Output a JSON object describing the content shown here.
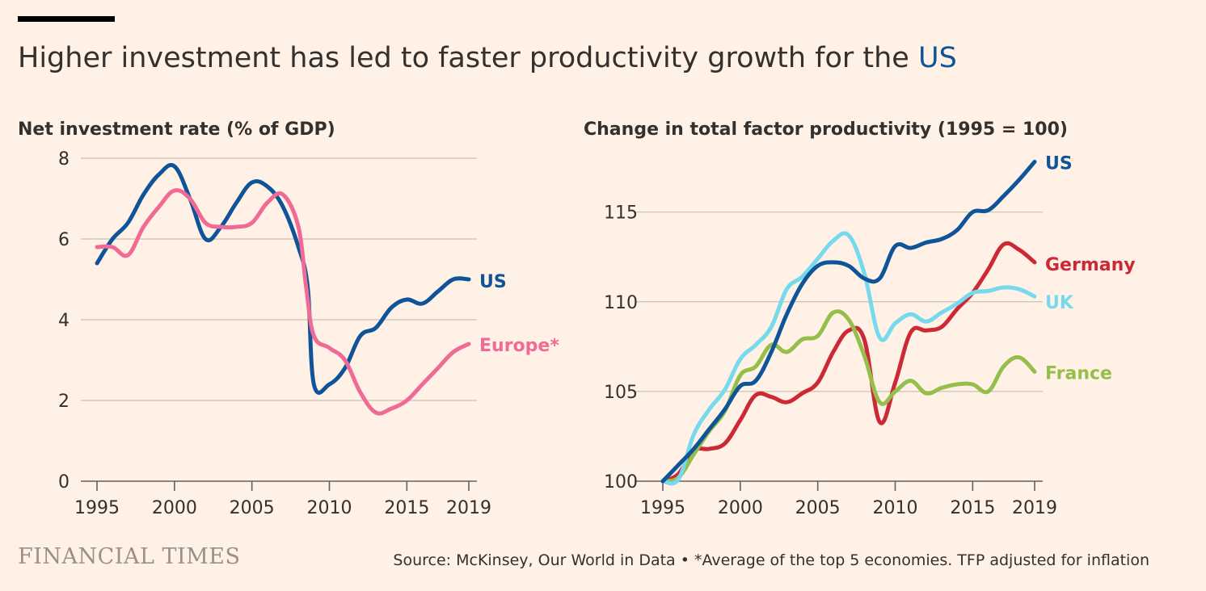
{
  "title": {
    "main": "Higher investment has led to faster productivity growth for the ",
    "highlight": "US"
  },
  "colors": {
    "background": "#FFF1E5",
    "grid": "#CCC1B7",
    "axis": "#66605C",
    "text": "#33302E",
    "us": "#0F5499",
    "europe": "#EF6B96",
    "germany": "#CC2936",
    "uk": "#76D9ED",
    "france": "#96BE4B"
  },
  "footer": {
    "brand": "FINANCIAL TIMES",
    "source": "Source: McKinsey, Our World in Data • *Average of the top 5 economies. TFP adjusted for inflation"
  },
  "chart_data": [
    {
      "type": "line",
      "title": "Net investment rate (% of GDP)",
      "xlim": [
        1995,
        2019
      ],
      "ylim": [
        0,
        8
      ],
      "yticks": [
        0,
        2,
        4,
        6,
        8
      ],
      "xticks": [
        1995,
        2000,
        2005,
        2010,
        2015,
        2019
      ],
      "grid": true,
      "legend": "inline-right",
      "series": [
        {
          "name": "US",
          "color_key": "us",
          "x": [
            1995,
            1996,
            1997,
            1998,
            1999,
            2000,
            2001,
            2002,
            2003,
            2004,
            2005,
            2006,
            2007,
            2008,
            2008.6,
            2009,
            2010,
            2011,
            2012,
            2013,
            2014,
            2015,
            2016,
            2017,
            2018,
            2019
          ],
          "y": [
            5.4,
            6.0,
            6.4,
            7.1,
            7.6,
            7.8,
            7.0,
            6.0,
            6.3,
            6.9,
            7.4,
            7.3,
            6.8,
            5.8,
            4.8,
            2.4,
            2.4,
            2.8,
            3.6,
            3.8,
            4.3,
            4.5,
            4.4,
            4.7,
            5.0,
            5.0
          ]
        },
        {
          "name": "Europe*",
          "color_key": "europe",
          "x": [
            1995,
            1996,
            1997,
            1998,
            1999,
            2000,
            2001,
            2002,
            2003,
            2004,
            2005,
            2006,
            2007,
            2008,
            2008.5,
            2009,
            2010,
            2011,
            2012,
            2013,
            2014,
            2015,
            2016,
            2017,
            2018,
            2019
          ],
          "y": [
            5.8,
            5.8,
            5.6,
            6.3,
            6.8,
            7.2,
            7.0,
            6.4,
            6.3,
            6.3,
            6.4,
            6.9,
            7.1,
            6.3,
            4.8,
            3.6,
            3.3,
            3.0,
            2.2,
            1.7,
            1.8,
            2.0,
            2.4,
            2.8,
            3.2,
            3.4
          ]
        }
      ]
    },
    {
      "type": "line",
      "title": "Change in total factor productivity (1995 = 100)",
      "xlim": [
        1995,
        2019
      ],
      "ylim": [
        100,
        118
      ],
      "yticks": [
        100,
        105,
        110,
        115
      ],
      "xticks": [
        1995,
        2000,
        2005,
        2010,
        2015,
        2019
      ],
      "grid": true,
      "legend": "inline-right",
      "series": [
        {
          "name": "Germany",
          "color_key": "germany",
          "x": [
            1995,
            1996,
            1997,
            1998,
            1999,
            2000,
            2001,
            2002,
            2003,
            2004,
            2005,
            2006,
            2007,
            2008,
            2009,
            2010,
            2011,
            2012,
            2013,
            2014,
            2015,
            2016,
            2017,
            2018,
            2019
          ],
          "y": [
            100.0,
            100.4,
            101.7,
            101.8,
            102.1,
            103.4,
            104.8,
            104.7,
            104.4,
            104.9,
            105.5,
            107.2,
            108.4,
            107.9,
            103.3,
            105.5,
            108.3,
            108.4,
            108.6,
            109.6,
            110.5,
            111.8,
            113.2,
            112.9,
            112.2
          ]
        },
        {
          "name": "France",
          "color_key": "france",
          "x": [
            1995,
            1996,
            1997,
            1998,
            1999,
            2000,
            2001,
            2002,
            2003,
            2004,
            2005,
            2006,
            2007,
            2008,
            2009,
            2010,
            2011,
            2012,
            2013,
            2014,
            2015,
            2016,
            2017,
            2018,
            2019
          ],
          "y": [
            100.0,
            100.2,
            101.5,
            102.8,
            103.9,
            105.9,
            106.4,
            107.6,
            107.2,
            107.9,
            108.1,
            109.4,
            109.0,
            107.0,
            104.4,
            105.0,
            105.6,
            104.9,
            105.2,
            105.4,
            105.4,
            105.0,
            106.4,
            106.9,
            106.1
          ]
        },
        {
          "name": "UK",
          "color_key": "uk",
          "x": [
            1995,
            1996,
            1997,
            1998,
            1999,
            2000,
            2001,
            2002,
            2003,
            2004,
            2005,
            2006,
            2007,
            2008,
            2009,
            2010,
            2011,
            2012,
            2013,
            2014,
            2015,
            2016,
            2017,
            2018,
            2019
          ],
          "y": [
            100.0,
            100.1,
            102.6,
            104.0,
            105.1,
            106.8,
            107.6,
            108.6,
            110.7,
            111.4,
            112.4,
            113.4,
            113.7,
            111.6,
            108.0,
            108.8,
            109.3,
            108.9,
            109.4,
            109.9,
            110.5,
            110.6,
            110.8,
            110.7,
            110.3
          ]
        },
        {
          "name": "US",
          "color_key": "us",
          "x": [
            1995,
            1996,
            1997,
            1998,
            1999,
            2000,
            2001,
            2002,
            2003,
            2004,
            2005,
            2006,
            2007,
            2008,
            2009,
            2010,
            2011,
            2012,
            2013,
            2014,
            2015,
            2016,
            2017,
            2018,
            2019
          ],
          "y": [
            100.0,
            100.9,
            101.8,
            102.9,
            104.0,
            105.3,
            105.6,
            107.2,
            109.3,
            111.0,
            112.0,
            112.2,
            112.0,
            111.3,
            111.3,
            113.1,
            113.0,
            113.3,
            113.5,
            114.0,
            115.0,
            115.1,
            115.9,
            116.8,
            117.8
          ]
        }
      ]
    }
  ]
}
